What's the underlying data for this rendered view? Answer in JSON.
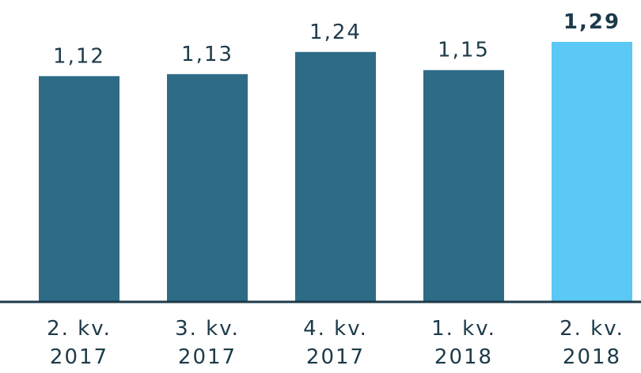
{
  "chart_data": {
    "type": "bar",
    "categories": [
      "2. kv. 2017",
      "3. kv. 2017",
      "4. kv. 2017",
      "1. kv. 2018",
      "2. kv. 2018"
    ],
    "values": [
      1.12,
      1.13,
      1.24,
      1.15,
      1.29
    ],
    "value_labels": [
      "1,12",
      "1,13",
      "1,24",
      "1,15",
      "1,29"
    ],
    "colors": [
      "#2d6b87",
      "#2d6b87",
      "#2d6b87",
      "#2d6b87",
      "#5bc8f5"
    ],
    "highlight_index": 4
  }
}
